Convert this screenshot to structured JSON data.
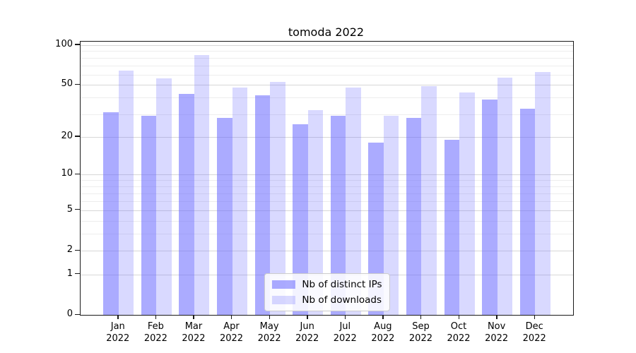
{
  "title": "tomoda 2022",
  "chart_data": {
    "type": "bar",
    "title": "tomoda 2022",
    "categories": [
      "Jan 2022",
      "Feb 2022",
      "Mar 2022",
      "Apr 2022",
      "May 2022",
      "Jun 2022",
      "Jul 2022",
      "Aug 2022",
      "Sep 2022",
      "Oct 2022",
      "Nov 2022",
      "Dec 2022"
    ],
    "months": [
      "Jan",
      "Feb",
      "Mar",
      "Apr",
      "May",
      "Jun",
      "Jul",
      "Aug",
      "Sep",
      "Oct",
      "Nov",
      "Dec"
    ],
    "year": "2022",
    "series": [
      {
        "name": "Nb of distinct IPs",
        "color": "rgba(102,102,255,0.55)",
        "values": [
          31,
          29,
          43,
          28,
          42,
          25,
          29,
          18,
          28,
          19,
          39,
          33
        ]
      },
      {
        "name": "Nb of downloads",
        "color": "rgba(102,102,255,0.25)",
        "values": [
          64,
          56,
          84,
          48,
          53,
          32,
          48,
          29,
          49,
          44,
          57,
          63
        ]
      }
    ],
    "yscale": "log1p",
    "ylabel": "",
    "xlabel": "",
    "y_ticks": [
      0,
      1,
      2,
      5,
      10,
      20,
      50,
      100
    ],
    "y_minor_gridlines": [
      3,
      4,
      6,
      7,
      8,
      9,
      30,
      40,
      60,
      70,
      80,
      90
    ],
    "ymax": 106,
    "grid": true,
    "legend_position": "lower center"
  },
  "colors": {
    "bar_distinct_ips": "rgba(102,102,255,0.55)",
    "bar_downloads": "rgba(102,102,255,0.25)",
    "grid_major": "#d7d7d7",
    "grid_minor": "#ededed",
    "spine": "#1a1a1a",
    "background": "#ffffff"
  }
}
